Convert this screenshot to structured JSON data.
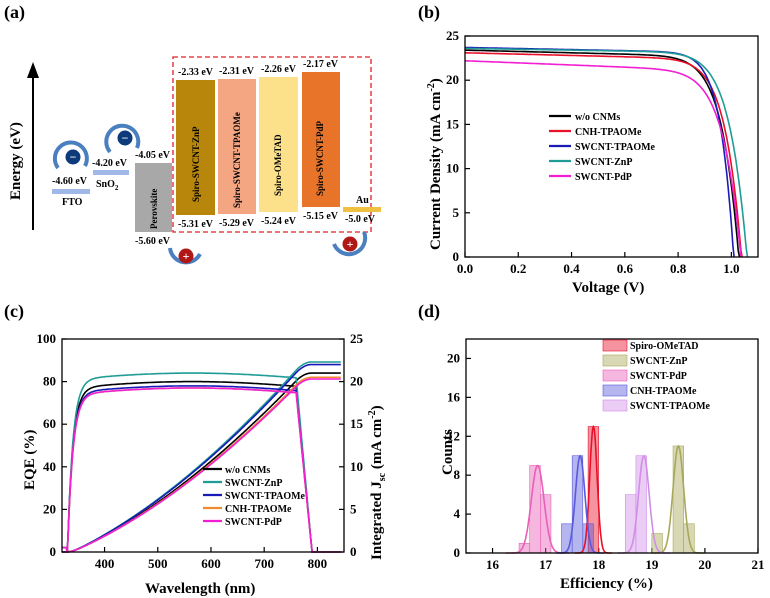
{
  "colors": {
    "black": "#000000",
    "red": "#e8102a",
    "blue": "#1a1ab8",
    "teal": "#1f9c96",
    "magenta": "#f21fd2",
    "orange": "#f08a30",
    "olive": "#a8a85a",
    "pink": "#e860b8",
    "blue_hist": "#5a5adc",
    "violet_hist": "#d08ee8",
    "perovskite": "#a8a8a8",
    "znp": "#b8860b",
    "tpaome": "#f4a582",
    "ometad": "#fde08a",
    "pdp": "#e8742a",
    "fto": "#a0b8e8",
    "au": "#f0c040"
  },
  "chart_data": [
    {
      "panel": "(a)",
      "type": "diagram",
      "ylabel": "Energy (eV)",
      "layers": [
        {
          "name": "FTO",
          "lumo": null,
          "homo": "-4.60 eV"
        },
        {
          "name": "SnO2",
          "lumo": "-4.20 eV",
          "homo": null
        },
        {
          "name": "Perovskite",
          "lumo": "-4.05 eV",
          "homo": "-5.60 eV"
        },
        {
          "name": "Spiro-SWCNT-ZnP",
          "lumo": "-2.33 eV",
          "homo": "-5.31 eV"
        },
        {
          "name": "Spiro-SWCNT-TPAOMe",
          "lumo": "-2.31 eV",
          "homo": "-5.29 eV"
        },
        {
          "name": "Spiro-OMeTAD",
          "lumo": "-2.26 eV",
          "homo": "-5.24 eV"
        },
        {
          "name": "Spiro-SWCNT-PdP",
          "lumo": "-2.17 eV",
          "homo": "-5.15 eV"
        },
        {
          "name": "Au",
          "lumo": null,
          "homo": "-5.0 eV"
        }
      ],
      "sno2_label": "SnO",
      "sno2_sub": "2",
      "electron_symbol": "−",
      "hole_symbol": "+"
    },
    {
      "panel": "(b)",
      "type": "line",
      "xlabel": "Voltage (V)",
      "ylabel": "Current Density (mA cm",
      "ylabel_sup": "-2",
      "ylabel_close": ")",
      "xlim": [
        0.0,
        1.1
      ],
      "ylim": [
        0,
        25
      ],
      "xticks": [
        "0.0",
        "0.2",
        "0.4",
        "0.6",
        "0.8",
        "1.0"
      ],
      "yticks": [
        "0",
        "5",
        "10",
        "15",
        "20",
        "25"
      ],
      "series": [
        {
          "name": "w/o CNMs",
          "color": "#000000",
          "jsc": 23.4,
          "voc": 1.03,
          "slope": 0.75,
          "pw": 4.0
        },
        {
          "name": "CNH-TPAOMe",
          "color": "#e8102a",
          "jsc": 23.1,
          "voc": 1.04,
          "slope": 0.75,
          "pw": 4.2
        },
        {
          "name": "SWCNT-TPAOMe",
          "color": "#1a1ab8",
          "jsc": 23.7,
          "voc": 1.01,
          "slope": 0.6,
          "pw": 5.0
        },
        {
          "name": "SWCNT-ZnP",
          "color": "#1f9c96",
          "jsc": 23.6,
          "voc": 1.06,
          "slope": 0.5,
          "pw": 4.0
        },
        {
          "name": "SWCNT-PdP",
          "color": "#f21fd2",
          "jsc": 22.2,
          "voc": 1.04,
          "slope": 1.2,
          "pw": 3.8
        }
      ]
    },
    {
      "panel": "(c)",
      "type": "line",
      "xlabel": "Wavelength (nm)",
      "ylabel": "EQE (%)",
      "ylabel_right": "Integrated J",
      "ylabel_right_sub": "sc",
      "ylabel_right_tail": " (mA cm",
      "ylabel_right_sup": "-2",
      "ylabel_right_close": ")",
      "xlim": [
        320,
        850
      ],
      "ylim": [
        0,
        100
      ],
      "ylim_right": [
        0,
        25
      ],
      "xticks": [
        "400",
        "500",
        "600",
        "700",
        "800"
      ],
      "yticks": [
        "0",
        "20",
        "40",
        "60",
        "80",
        "100"
      ],
      "yticks_right": [
        "0",
        "5",
        "10",
        "15",
        "20",
        "25"
      ],
      "series": [
        {
          "name": "w/o CNMs",
          "color": "#000000",
          "plateau": 80,
          "jsc_end": 21.0
        },
        {
          "name": "SWCNT-ZnP",
          "color": "#1f9c96",
          "plateau": 84,
          "jsc_end": 22.3
        },
        {
          "name": "SWCNT-TPAOMe",
          "color": "#1a1ab8",
          "plateau": 78,
          "jsc_end": 22.0
        },
        {
          "name": "CNH-TPAOMe",
          "color": "#f08a30",
          "plateau": 77,
          "jsc_end": 20.5
        },
        {
          "name": "SWCNT-PdP",
          "color": "#f21fd2",
          "plateau": 77,
          "jsc_end": 20.3
        }
      ]
    },
    {
      "panel": "(d)",
      "type": "bar",
      "xlabel": "Efficiency (%)",
      "ylabel": "Counts",
      "xlim": [
        15.5,
        21
      ],
      "ylim": [
        0,
        22
      ],
      "xticks": [
        "16",
        "17",
        "18",
        "19",
        "20",
        "21"
      ],
      "yticks": [
        "0",
        "4",
        "8",
        "12",
        "16",
        "20"
      ],
      "series": [
        {
          "name": "Spiro-OMeTAD",
          "color": "#e8102a",
          "bins": [
            [
              17.9,
              13
            ]
          ],
          "mu": 17.9,
          "sigma": 0.07,
          "peak": 13
        },
        {
          "name": "SWCNT-ZnP",
          "color": "#a8a85a",
          "bins": [
            [
              19.1,
              2
            ],
            [
              19.5,
              11
            ],
            [
              19.7,
              3
            ]
          ],
          "mu": 19.5,
          "sigma": 0.1,
          "peak": 11
        },
        {
          "name": "SWCNT-PdP",
          "color": "#e860b8",
          "bins": [
            [
              16.6,
              1
            ],
            [
              16.8,
              9
            ],
            [
              17.0,
              6
            ]
          ],
          "mu": 16.85,
          "sigma": 0.12,
          "peak": 9
        },
        {
          "name": "CNH-TPAOMe",
          "color": "#5a5adc",
          "bins": [
            [
              17.4,
              3
            ],
            [
              17.6,
              10
            ],
            [
              17.8,
              3
            ]
          ],
          "mu": 17.65,
          "sigma": 0.09,
          "peak": 10
        },
        {
          "name": "SWCNT-TPAOMe",
          "color": "#d08ee8",
          "bins": [
            [
              18.6,
              6
            ],
            [
              18.8,
              10
            ]
          ],
          "mu": 18.85,
          "sigma": 0.1,
          "peak": 10
        }
      ]
    }
  ]
}
